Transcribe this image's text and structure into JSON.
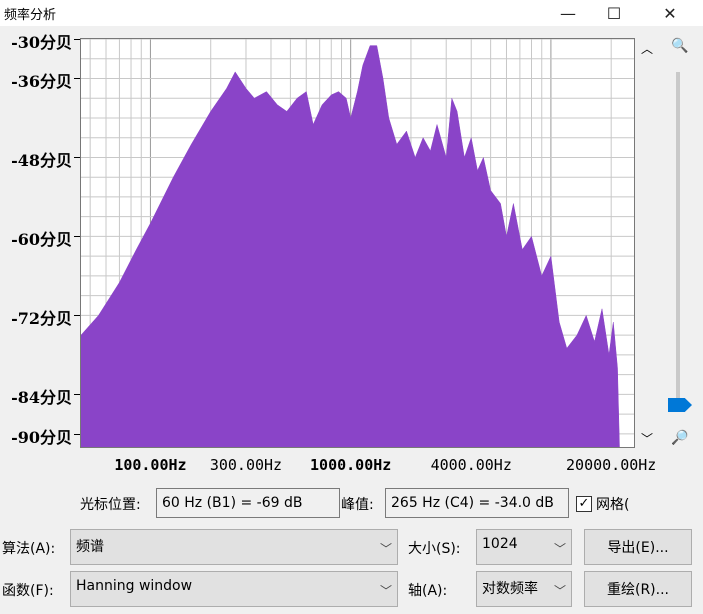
{
  "window": {
    "title": "频率分析",
    "minimize_icon": "minimize-icon",
    "maximize_icon": "maximize-icon",
    "close_icon": "close-icon"
  },
  "chart_data": {
    "type": "area",
    "xscale": "log",
    "xlim": [
      45,
      26000
    ],
    "ylim": [
      -92,
      -30
    ],
    "fill_color": "#8a44c8",
    "grid": true,
    "ytick_labels": [
      {
        "value": -30,
        "label": "-30分贝"
      },
      {
        "value": -36,
        "label": "-36分贝"
      },
      {
        "value": -48,
        "label": "-48分贝"
      },
      {
        "value": -60,
        "label": "-60分贝"
      },
      {
        "value": -72,
        "label": "-72分贝"
      },
      {
        "value": -84,
        "label": "-84分贝"
      },
      {
        "value": -90,
        "label": "-90分贝"
      }
    ],
    "xtick_labels": [
      {
        "value": 100,
        "label": "100.00Hz",
        "major": true
      },
      {
        "value": 300,
        "label": "300.00Hz",
        "major": false
      },
      {
        "value": 1000,
        "label": "1000.00Hz",
        "major": true
      },
      {
        "value": 4000,
        "label": "4000.00Hz",
        "major": false
      },
      {
        "value": 20000,
        "label": "20000.00Hz",
        "major": false
      }
    ],
    "points": [
      [
        45,
        -75
      ],
      [
        55,
        -72
      ],
      [
        70,
        -67
      ],
      [
        85,
        -62
      ],
      [
        100,
        -58
      ],
      [
        130,
        -51
      ],
      [
        160,
        -46
      ],
      [
        200,
        -41
      ],
      [
        240,
        -37.5
      ],
      [
        265,
        -35
      ],
      [
        300,
        -37.5
      ],
      [
        330,
        -39
      ],
      [
        380,
        -38
      ],
      [
        430,
        -40
      ],
      [
        480,
        -41
      ],
      [
        540,
        -39
      ],
      [
        600,
        -38
      ],
      [
        650,
        -43
      ],
      [
        720,
        -40
      ],
      [
        800,
        -38.5
      ],
      [
        870,
        -38
      ],
      [
        950,
        -39
      ],
      [
        1000,
        -42
      ],
      [
        1080,
        -38
      ],
      [
        1150,
        -34
      ],
      [
        1250,
        -31
      ],
      [
        1350,
        -31
      ],
      [
        1450,
        -36
      ],
      [
        1550,
        -42
      ],
      [
        1700,
        -46
      ],
      [
        1900,
        -44
      ],
      [
        2100,
        -48
      ],
      [
        2300,
        -45
      ],
      [
        2500,
        -47
      ],
      [
        2700,
        -43
      ],
      [
        3000,
        -48
      ],
      [
        3200,
        -39
      ],
      [
        3400,
        -41
      ],
      [
        3700,
        -48
      ],
      [
        4000,
        -45
      ],
      [
        4300,
        -50
      ],
      [
        4600,
        -48
      ],
      [
        5000,
        -53
      ],
      [
        5600,
        -55
      ],
      [
        6000,
        -60
      ],
      [
        6500,
        -55
      ],
      [
        7200,
        -62
      ],
      [
        8000,
        -60
      ],
      [
        9000,
        -66
      ],
      [
        10000,
        -63
      ],
      [
        11000,
        -73
      ],
      [
        12000,
        -77
      ],
      [
        13500,
        -75
      ],
      [
        15000,
        -72
      ],
      [
        16500,
        -76
      ],
      [
        18000,
        -71
      ],
      [
        19500,
        -78
      ],
      [
        20500,
        -73
      ],
      [
        21500,
        -80
      ],
      [
        22000,
        -92
      ]
    ]
  },
  "zoom": {
    "zoom_in_icon": "zoom-in-icon",
    "zoom_out_icon": "zoom-out-icon",
    "level": 0.03
  },
  "readout": {
    "cursor_label": "光标位置:",
    "cursor_value": "60 Hz (B1) = -69 dB",
    "peak_label": "峰值:",
    "peak_value": "265 Hz (C4) = -34.0 dB",
    "grid_label": "网格(",
    "grid_checked": "✓"
  },
  "controls": {
    "algorithm_label": "算法(A):",
    "algorithm_value": "频谱",
    "size_label": "大小(S):",
    "size_value": "1024",
    "export_button": "导出(E)...",
    "function_label": "函数(F):",
    "function_value": "Hanning window",
    "axis_label": "轴(A):",
    "axis_value": "对数频率",
    "redraw_button": "重绘(R)...",
    "dropdown_icon": "chevron-down-icon"
  }
}
